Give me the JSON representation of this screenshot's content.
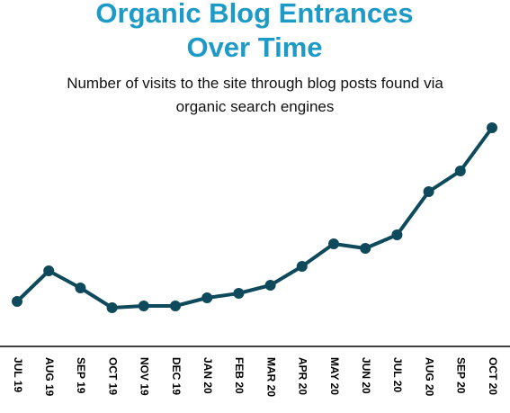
{
  "chart_data": {
    "type": "line",
    "title": "Organic Blog Entrances Over Time",
    "subtitle": "Number of visits to the site through blog posts found via organic search engines",
    "categories": [
      "JUL 19",
      "AUG 19",
      "SEP 19",
      "OCT 19",
      "NOV 19",
      "DEC 19",
      "JAN 20",
      "FEB 20",
      "MAR 20",
      "APR 20",
      "MAY 20",
      "JUN 20",
      "JUL 20",
      "AUG 20",
      "SEP 20",
      "OCT 20"
    ],
    "values": [
      50,
      84,
      65,
      43,
      45,
      45,
      54,
      59,
      68,
      89,
      114,
      109,
      124,
      172,
      195,
      243
    ],
    "color": "#0e4a5c"
  }
}
